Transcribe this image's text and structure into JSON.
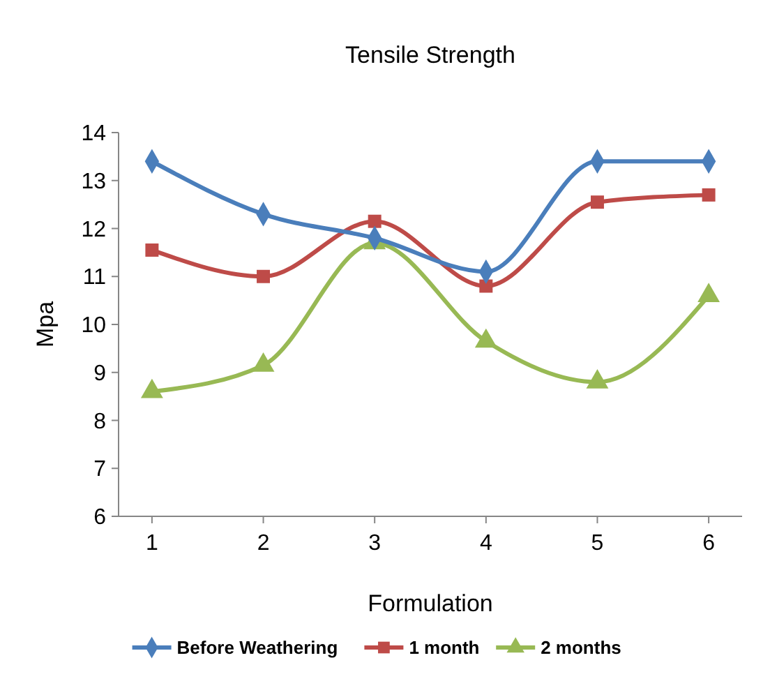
{
  "chart_data": {
    "type": "line",
    "title": "Tensile Strength",
    "xlabel": "Formulation",
    "ylabel": "Mpa",
    "categories": [
      "1",
      "2",
      "3",
      "4",
      "5",
      "6"
    ],
    "series": [
      {
        "name": "Before Weathering",
        "color": "#4a7ebb",
        "marker": "diamond",
        "values": [
          13.4,
          12.3,
          11.8,
          11.1,
          13.4,
          13.4
        ]
      },
      {
        "name": "1 month",
        "color": "#be4b48",
        "marker": "square",
        "values": [
          11.55,
          11.0,
          12.15,
          10.8,
          12.55,
          12.7
        ]
      },
      {
        "name": "2 months",
        "color": "#98b954",
        "marker": "triangle",
        "values": [
          8.6,
          9.15,
          11.7,
          9.65,
          8.8,
          10.6
        ]
      }
    ],
    "ylim": [
      6,
      14
    ],
    "yticks": [
      6,
      7,
      8,
      9,
      10,
      11,
      12,
      13,
      14
    ],
    "grid": false,
    "legend": "bottom",
    "line_style": "solid"
  }
}
